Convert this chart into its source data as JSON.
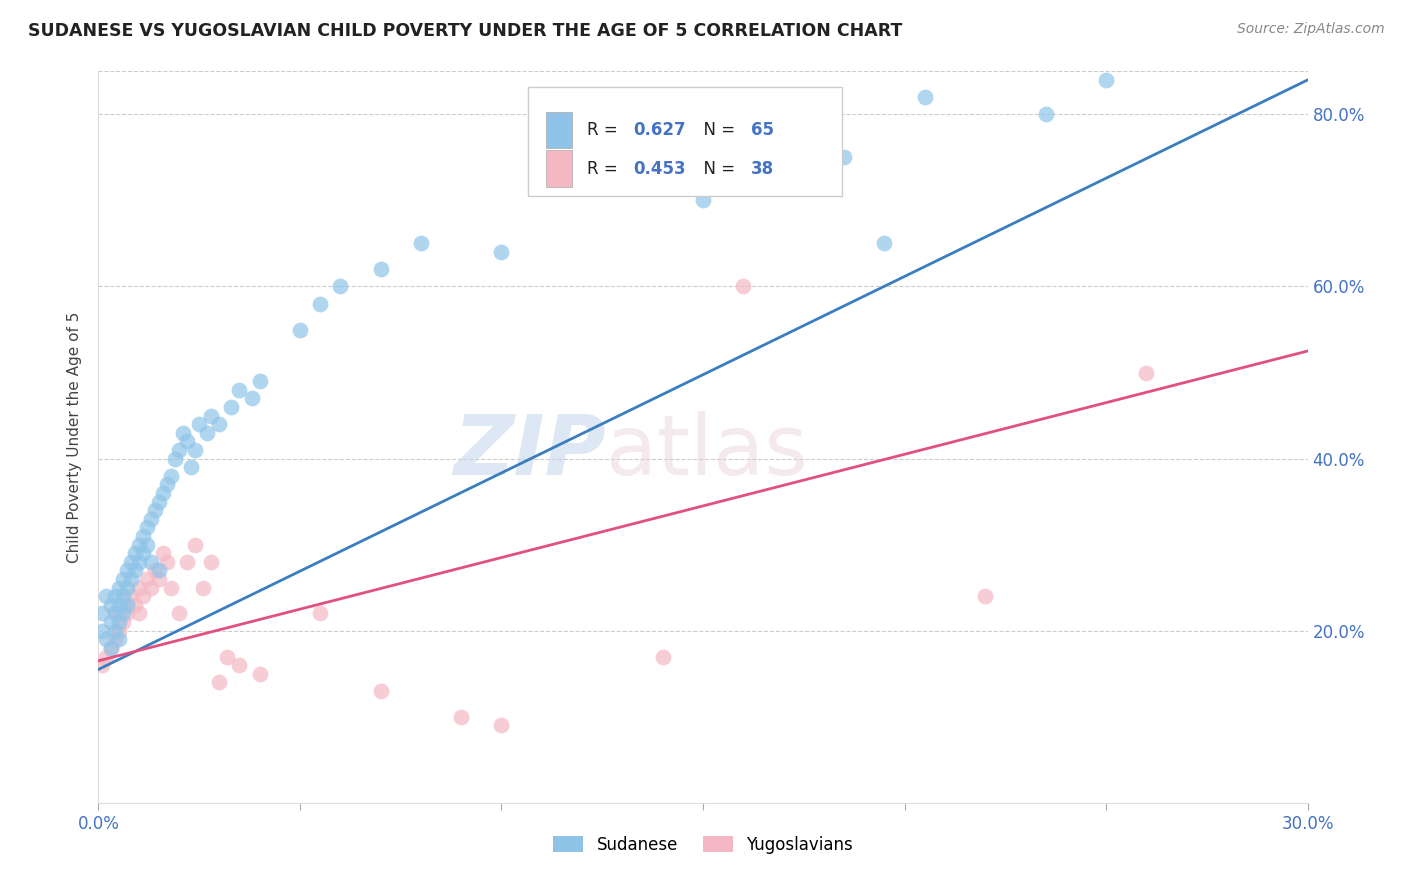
{
  "title": "SUDANESE VS YUGOSLAVIAN CHILD POVERTY UNDER THE AGE OF 5 CORRELATION CHART",
  "source": "Source: ZipAtlas.com",
  "ylabel": "Child Poverty Under the Age of 5",
  "x_min": 0.0,
  "x_max": 0.3,
  "y_min": 0.0,
  "y_max": 0.85,
  "sudanese_color": "#8fc4e8",
  "yugoslavian_color": "#f4b8c4",
  "trendline_sudanese_color": "#3a7ebf",
  "trendline_yugoslavian_color": "#e05080",
  "background_color": "#ffffff",
  "grid_color": "#cccccc",
  "blue_val_color": "#4472c4",
  "sudanese_x": [
    0.001,
    0.001,
    0.002,
    0.002,
    0.003,
    0.003,
    0.003,
    0.004,
    0.004,
    0.004,
    0.005,
    0.005,
    0.005,
    0.005,
    0.006,
    0.006,
    0.006,
    0.007,
    0.007,
    0.007,
    0.008,
    0.008,
    0.009,
    0.009,
    0.01,
    0.01,
    0.011,
    0.011,
    0.012,
    0.012,
    0.013,
    0.013,
    0.014,
    0.015,
    0.015,
    0.016,
    0.017,
    0.018,
    0.019,
    0.02,
    0.021,
    0.022,
    0.023,
    0.024,
    0.025,
    0.027,
    0.028,
    0.03,
    0.033,
    0.035,
    0.038,
    0.04,
    0.05,
    0.055,
    0.06,
    0.07,
    0.08,
    0.1,
    0.14,
    0.15,
    0.185,
    0.195,
    0.205,
    0.235,
    0.25
  ],
  "sudanese_y": [
    0.2,
    0.22,
    0.19,
    0.24,
    0.21,
    0.23,
    0.18,
    0.22,
    0.2,
    0.24,
    0.23,
    0.21,
    0.25,
    0.19,
    0.26,
    0.24,
    0.22,
    0.27,
    0.25,
    0.23,
    0.28,
    0.26,
    0.29,
    0.27,
    0.3,
    0.28,
    0.31,
    0.29,
    0.32,
    0.3,
    0.33,
    0.28,
    0.34,
    0.35,
    0.27,
    0.36,
    0.37,
    0.38,
    0.4,
    0.41,
    0.43,
    0.42,
    0.39,
    0.41,
    0.44,
    0.43,
    0.45,
    0.44,
    0.46,
    0.48,
    0.47,
    0.49,
    0.55,
    0.58,
    0.6,
    0.62,
    0.65,
    0.64,
    0.78,
    0.7,
    0.75,
    0.65,
    0.82,
    0.8,
    0.84
  ],
  "yugoslavian_x": [
    0.001,
    0.002,
    0.003,
    0.004,
    0.004,
    0.005,
    0.006,
    0.006,
    0.007,
    0.008,
    0.009,
    0.01,
    0.01,
    0.011,
    0.012,
    0.013,
    0.014,
    0.015,
    0.016,
    0.017,
    0.018,
    0.02,
    0.022,
    0.024,
    0.026,
    0.028,
    0.03,
    0.032,
    0.035,
    0.04,
    0.055,
    0.07,
    0.09,
    0.1,
    0.14,
    0.16,
    0.22,
    0.26
  ],
  "yugoslavian_y": [
    0.16,
    0.17,
    0.18,
    0.19,
    0.22,
    0.2,
    0.21,
    0.23,
    0.22,
    0.24,
    0.23,
    0.25,
    0.22,
    0.24,
    0.26,
    0.25,
    0.27,
    0.26,
    0.29,
    0.28,
    0.25,
    0.22,
    0.28,
    0.3,
    0.25,
    0.28,
    0.14,
    0.17,
    0.16,
    0.15,
    0.22,
    0.13,
    0.1,
    0.09,
    0.17,
    0.6,
    0.24,
    0.5
  ],
  "trendline_blue_x0": 0.0,
  "trendline_blue_y0": 0.155,
  "trendline_blue_x1": 0.3,
  "trendline_blue_y1": 0.84,
  "trendline_pink_x0": 0.0,
  "trendline_pink_y0": 0.165,
  "trendline_pink_x1": 0.3,
  "trendline_pink_y1": 0.525
}
